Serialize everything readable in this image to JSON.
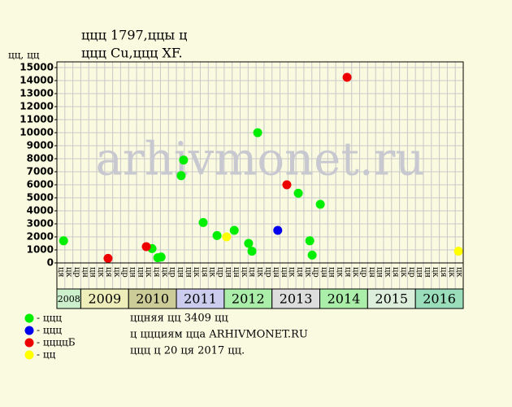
{
  "chart_data": {
    "type": "scatter",
    "title": "ццц 1797,ццы ц",
    "subtitle": "ццц Cu,ццц XF.",
    "y_label": "цц, цц",
    "watermark": "arhivmonet.ru",
    "xlim": [
      2008.5,
      2017
    ],
    "ylim": [
      0,
      15000
    ],
    "yticks": [
      0,
      1000,
      2000,
      3000,
      4000,
      5000,
      6000,
      7000,
      8000,
      9000,
      10000,
      11000,
      12000,
      13000,
      14000,
      15000
    ],
    "grid": true,
    "period_labels": [
      "ця",
      "цк",
      "цр",
      "цн",
      "цн",
      "цк",
      "ця",
      "цк",
      "цр",
      "цн",
      "цн",
      "цк",
      "ця",
      "цк",
      "цр",
      "цн",
      "цн",
      "цк",
      "ця",
      "цк",
      "цр",
      "цн",
      "цн",
      "цк",
      "ця",
      "цк",
      "цр",
      "цн",
      "цн",
      "цк",
      "ця",
      "цк",
      "цр",
      "цн",
      "цн",
      "цк",
      "ця",
      "цк",
      "цр",
      "цн",
      "цн",
      "цк",
      "ця",
      "цк",
      "цр",
      "цн",
      "цн",
      "цк",
      "ця",
      "цк",
      "цк"
    ],
    "years": [
      "2008",
      "2009",
      "2010",
      "2011",
      "2012",
      "2013",
      "2014",
      "2015",
      "2016"
    ],
    "series": [
      {
        "name": "- ццц",
        "color": "#00ee00",
        "x": [
          2008.64,
          2010.49,
          2010.61,
          2010.68,
          2011.1,
          2011.15,
          2011.56,
          2011.85,
          2012.21,
          2012.51,
          2012.58,
          2012.7,
          2013.55,
          2013.79,
          2013.84,
          2014.01
        ],
        "values": [
          1700,
          1100,
          400,
          450,
          6700,
          7900,
          3100,
          2100,
          2500,
          1500,
          900,
          10000,
          5350,
          1700,
          600,
          4500
        ]
      },
      {
        "name": "- ццц",
        "color": "#0000ee",
        "x": [
          2013.12
        ],
        "values": [
          2500
        ]
      },
      {
        "name": "- ццццБ",
        "color": "#ee0000",
        "x": [
          2009.57,
          2010.37,
          2013.31,
          2014.57
        ],
        "values": [
          350,
          1250,
          6000,
          14250
        ]
      },
      {
        "name": "- цц",
        "color": "#ffff00",
        "x": [
          2012.05,
          2016.9
        ],
        "values": [
          2000,
          900
        ]
      }
    ],
    "notes": [
      "ццняя цц 3409 цц",
      "ц ццциям ццa ARHIVMONET.RU",
      "ццц ц 20 ця 2017 цц."
    ]
  }
}
